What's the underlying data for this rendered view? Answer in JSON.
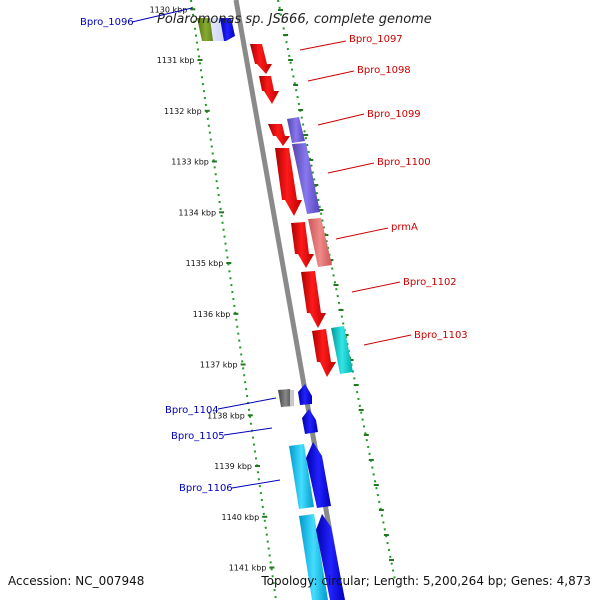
{
  "title": "Polaromonas sp. JS666, complete genome",
  "accession": "Accession: NC_007948",
  "topology": "Topology: circular; Length: 5,200,264 bp; Genes: 4,873",
  "colors": {
    "red": "#ee1111",
    "purple": "#7766dd",
    "salmon": "#ee7777",
    "cyan": "#11cccc",
    "blue": "#1111ee",
    "light_blue": "#22bbee",
    "gray": "#666666",
    "olive": "#668822",
    "backbone": "#777777",
    "ticks": "#227722"
  },
  "kbp_labels": [
    {
      "kbp": 1130,
      "text": "1130 kbp"
    },
    {
      "kbp": 1131,
      "text": "1131 kbp"
    },
    {
      "kbp": 1132,
      "text": "1132 kbp"
    },
    {
      "kbp": 1133,
      "text": "1133 kbp"
    },
    {
      "kbp": 1134,
      "text": "1134 kbp"
    },
    {
      "kbp": 1135,
      "text": "1135 kbp"
    },
    {
      "kbp": 1136,
      "text": "1136 kbp"
    },
    {
      "kbp": 1137,
      "text": "1137 kbp"
    },
    {
      "kbp": 1138,
      "text": "1138 kbp"
    },
    {
      "kbp": 1139,
      "text": "1139 kbp"
    },
    {
      "kbp": 1140,
      "text": "1140 kbp"
    },
    {
      "kbp": 1141,
      "text": "1141 kbp"
    }
  ],
  "gene_labels": [
    {
      "name": "Bpro_1096",
      "side": "left",
      "color": "blue"
    },
    {
      "name": "Bpro_1097",
      "side": "right",
      "color": "red"
    },
    {
      "name": "Bpro_1098",
      "side": "right",
      "color": "red"
    },
    {
      "name": "Bpro_1099",
      "side": "right",
      "color": "red"
    },
    {
      "name": "Bpro_1100",
      "side": "right",
      "color": "red"
    },
    {
      "name": "prmA",
      "side": "right",
      "color": "red"
    },
    {
      "name": "Bpro_1102",
      "side": "right",
      "color": "red"
    },
    {
      "name": "Bpro_1103",
      "side": "right",
      "color": "red"
    },
    {
      "name": "Bpro_1104",
      "side": "left",
      "color": "blue"
    },
    {
      "name": "Bpro_1105",
      "side": "left",
      "color": "blue"
    },
    {
      "name": "Bpro_1106",
      "side": "left",
      "color": "blue"
    }
  ]
}
